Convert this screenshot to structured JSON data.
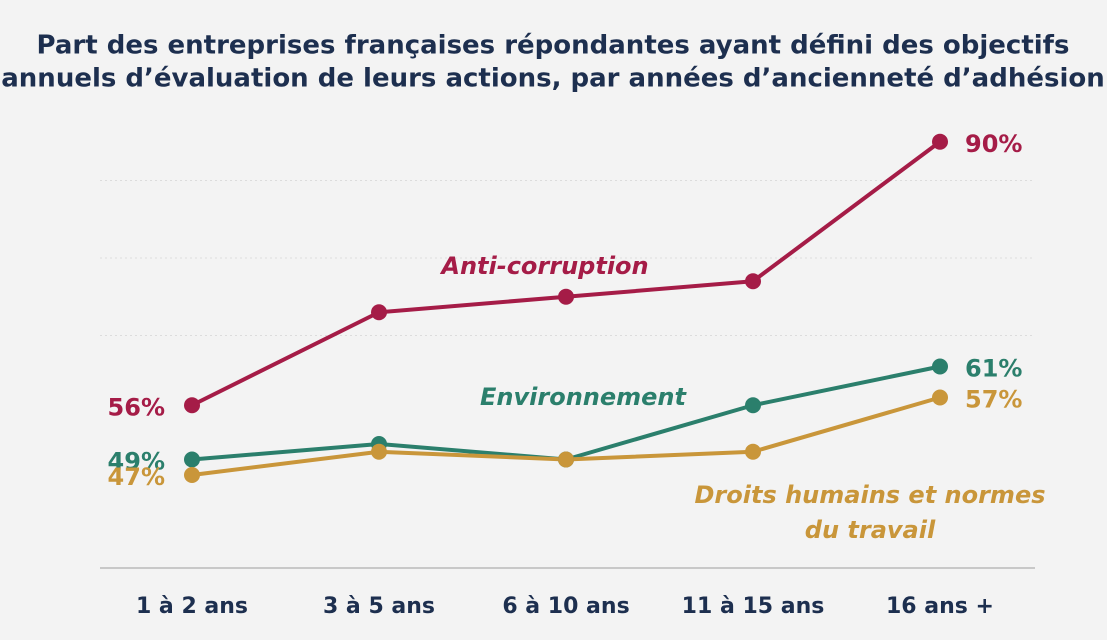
{
  "chart_data": {
    "type": "line",
    "title": [
      "Part des entreprises françaises répondantes ayant défini des objectifs",
      "annuels d’évaluation de leurs actions, par années d’ancienneté d’adhésion"
    ],
    "categories": [
      "1 à 2 ans",
      "3 à 5 ans",
      "6 à 10 ans",
      "11 à 15 ans",
      "16 ans +"
    ],
    "series": [
      {
        "name": "Anti-corruption",
        "color": "#a51c47",
        "values": [
          56,
          68,
          70,
          72,
          90
        ],
        "value_labels": [
          "56%",
          null,
          null,
          null,
          "90%"
        ]
      },
      {
        "name": "Environnement",
        "color": "#2b7f6c",
        "values": [
          49,
          51,
          49,
          56,
          61
        ],
        "value_labels": [
          "49%",
          null,
          null,
          null,
          "61%"
        ]
      },
      {
        "name": "Droits humains et normes du travail",
        "color": "#c9963a",
        "values": [
          47,
          50,
          49,
          50,
          57
        ],
        "value_labels": [
          "47%",
          null,
          null,
          null,
          "57%"
        ]
      }
    ],
    "ylim": [
      35,
      95
    ],
    "yticks": [
      65,
      75,
      85
    ],
    "grid": true
  }
}
